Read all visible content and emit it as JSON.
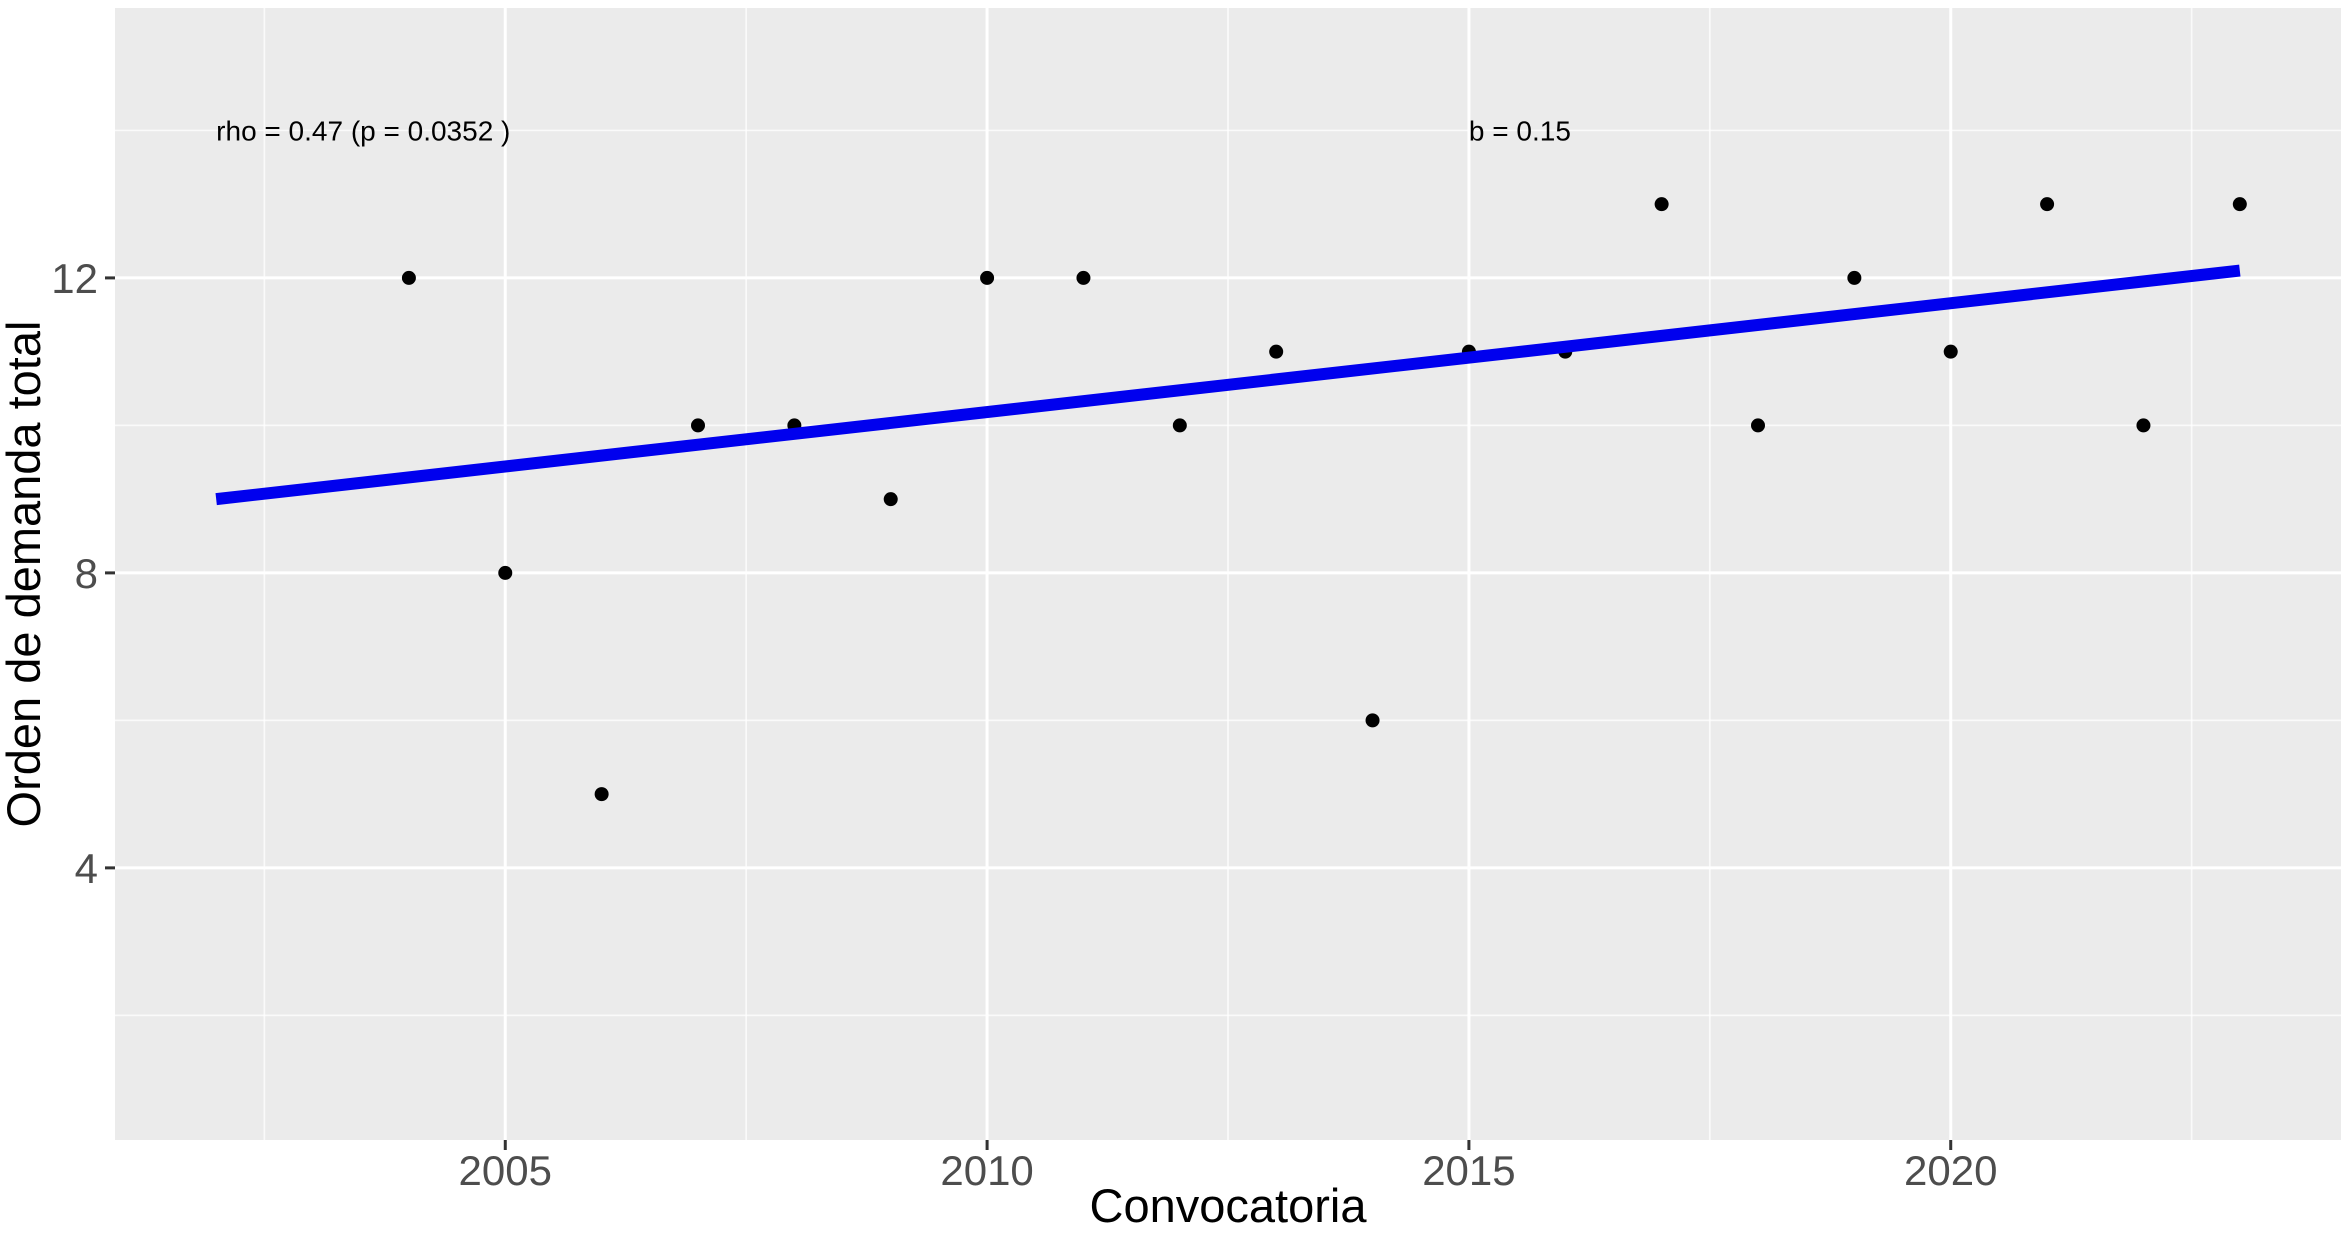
{
  "chart_data": {
    "type": "scatter",
    "title": "",
    "xlabel": "Convocatoria",
    "ylabel": "Orden de demanda total",
    "annotations": [
      {
        "text": "rho = 0.47  (p =  0.0352 )",
        "x": 2002,
        "y": 14,
        "anchor": "start"
      },
      {
        "text": "b = 0.15",
        "x": 2015,
        "y": 14,
        "anchor": "start"
      }
    ],
    "points": [
      [
        2004,
        12
      ],
      [
        2005,
        8
      ],
      [
        2006,
        5
      ],
      [
        2007,
        10
      ],
      [
        2008,
        10
      ],
      [
        2009,
        9
      ],
      [
        2010,
        12
      ],
      [
        2011,
        12
      ],
      [
        2012,
        10
      ],
      [
        2013,
        11
      ],
      [
        2014,
        6
      ],
      [
        2015,
        11
      ],
      [
        2016,
        11
      ],
      [
        2017,
        13
      ],
      [
        2018,
        10
      ],
      [
        2019,
        12
      ],
      [
        2020,
        11
      ],
      [
        2021,
        13
      ],
      [
        2022,
        10
      ],
      [
        2023,
        13
      ]
    ],
    "trend_line": {
      "x1": 2002,
      "y1": 9.0,
      "x2": 2023,
      "y2": 12.1
    },
    "x_ticks": [
      2005,
      2010,
      2015,
      2020
    ],
    "y_ticks": [
      4,
      8,
      12
    ],
    "x_minor_gridlines": [
      2002.5,
      2007.5,
      2012.5,
      2017.5,
      2022.5
    ],
    "y_minor_gridlines": [
      2,
      6,
      10,
      14
    ],
    "xlim": [
      2000.95,
      2024.05
    ],
    "ylim": [
      0.31,
      15.66
    ],
    "grid": "on",
    "legend": "none"
  },
  "colors": {
    "page_bg": "#FFFFFF",
    "panel_bg": "#EBEBEB",
    "grid_major": "#FFFFFF",
    "grid_minor": "#FFFFFF",
    "point": "#000000",
    "trend": "#0000EE",
    "tick_mark": "#333333",
    "tick_label": "#4D4D4D",
    "axis_title": "#000000",
    "annotation_text": "#000000"
  }
}
